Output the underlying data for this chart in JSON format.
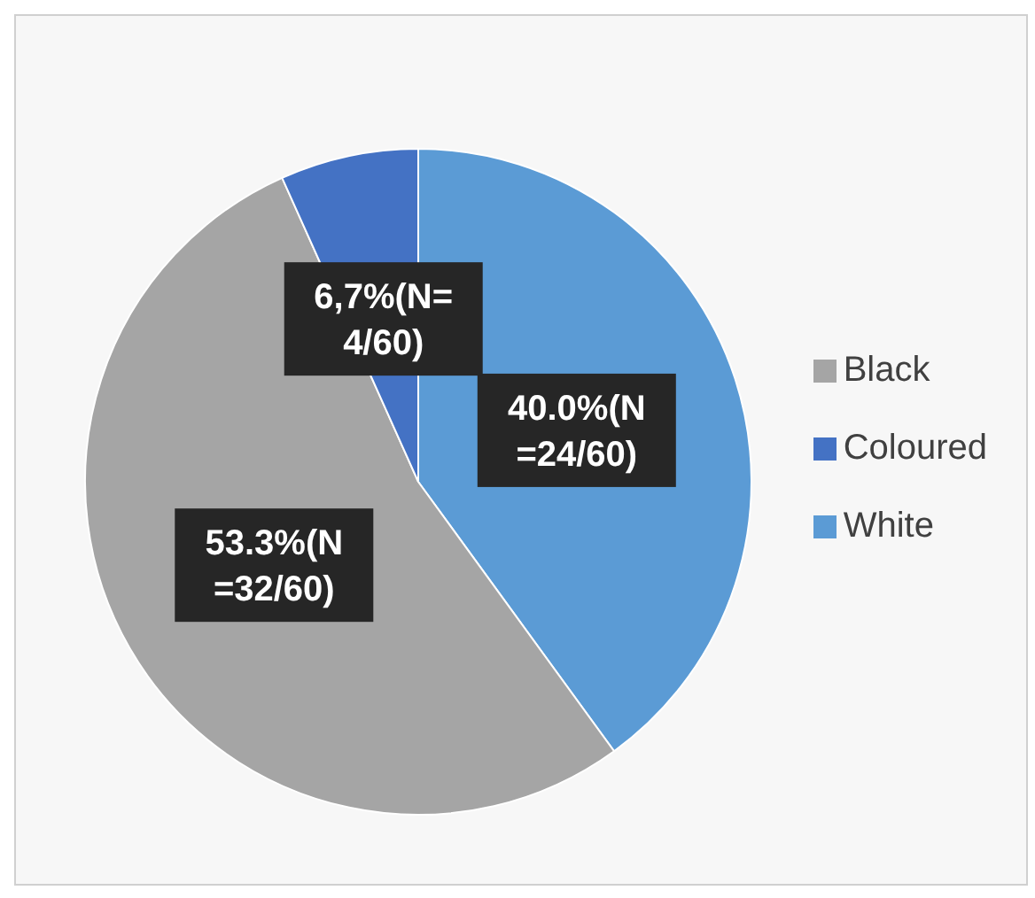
{
  "chart_data": {
    "type": "pie",
    "categories": [
      "White",
      "Black",
      "Coloured"
    ],
    "values": [
      40.0,
      53.3,
      6.7
    ],
    "colors": [
      "#5b9bd5",
      "#a5a5a5",
      "#4472c4"
    ],
    "value_labels": [
      "40.0%(N =24/60)",
      "53.3%(N =32/60)",
      "6,7%(N= 4/60)"
    ],
    "legend": "right"
  }
}
